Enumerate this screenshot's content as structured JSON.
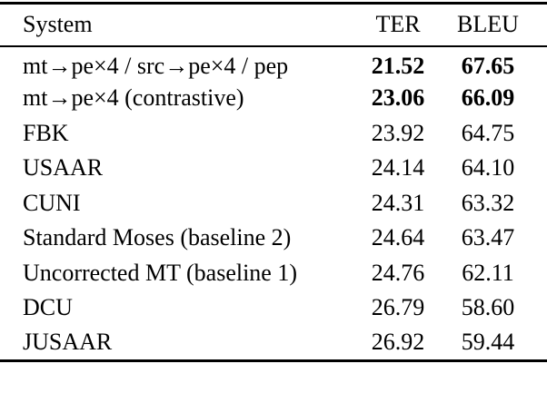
{
  "table": {
    "columns": [
      "System",
      "TER",
      "BLEU"
    ],
    "rows": [
      {
        "system": "mt→pe×4 / src→pe×4 / pep",
        "ter": "21.52",
        "bleu": "67.65",
        "bold": true
      },
      {
        "system": "mt→pe×4 (contrastive)",
        "ter": "23.06",
        "bleu": "66.09",
        "bold": true
      },
      {
        "system": "FBK",
        "ter": "23.92",
        "bleu": "64.75",
        "bold": false
      },
      {
        "system": "USAAR",
        "ter": "24.14",
        "bleu": "64.10",
        "bold": false
      },
      {
        "system": "CUNI",
        "ter": "24.31",
        "bleu": "63.32",
        "bold": false
      },
      {
        "system": "Standard Moses (baseline 2)",
        "ter": "24.64",
        "bleu": "63.47",
        "bold": false
      },
      {
        "system": "Uncorrected MT (baseline 1)",
        "ter": "24.76",
        "bleu": "62.11",
        "bold": false
      },
      {
        "system": "DCU",
        "ter": "26.79",
        "bleu": "58.60",
        "bold": false
      },
      {
        "system": "JUSAAR",
        "ter": "26.92",
        "bleu": "59.44",
        "bold": false
      }
    ],
    "colors": {
      "text": "#000000",
      "background": "#ffffff",
      "rule": "#000000"
    }
  }
}
